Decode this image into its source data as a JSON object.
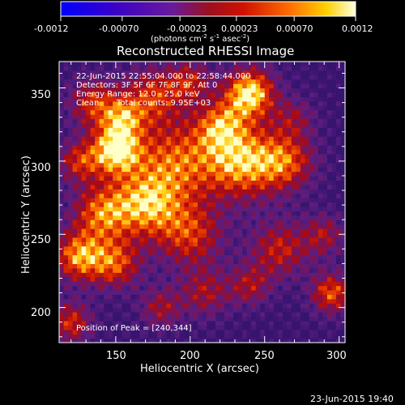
{
  "colorbar": {
    "tick_labels": [
      "-0.0012",
      "-0.00070",
      "-0.00023",
      "0.00023",
      "0.00070",
      "0.0012"
    ],
    "tick_values": [
      -0.0012,
      -0.0007,
      -0.00023,
      0.00023,
      0.0007,
      0.0012
    ],
    "range": [
      -0.0012,
      0.0012
    ],
    "units_main": "(photons cm",
    "units_sup1": "-2",
    "units_mid": " s",
    "units_sup2": "-1",
    "units_end": " asec",
    "units_sup3": "-2",
    "units_close": ")"
  },
  "image": {
    "title": "Reconstructed RHESSI Image",
    "time_range": "22-Jun-2015 22:55:04.000 to 22:58:44.000",
    "detectors": "Detectors: 3F 5F 6F 7F 8F 9F, Att 0",
    "energy_range": "Energy Range: 12.0 - 25.0 keV",
    "method": "Clean",
    "total_counts": "Total counts: 9.95E+03",
    "peak_label": "Position of Peak = [240,344]",
    "peak_position": [
      240,
      344
    ]
  },
  "axes": {
    "xlabel": "Heliocentric X (arcsec)",
    "ylabel": "Heliocentric Y (arcsec)",
    "x_ticks": [
      "150",
      "200",
      "250",
      "300"
    ],
    "x_tick_values": [
      150,
      200,
      250,
      300
    ],
    "y_ticks": [
      "200",
      "250",
      "300",
      "350"
    ],
    "y_tick_values": [
      200,
      250,
      300,
      350
    ],
    "xlim": [
      112,
      304
    ],
    "ylim": [
      176,
      368
    ]
  },
  "footer": {
    "timestamp": "23-Jun-2015 19:40"
  },
  "colors": {
    "background": "#000000",
    "foreground": "#ffffff"
  }
}
